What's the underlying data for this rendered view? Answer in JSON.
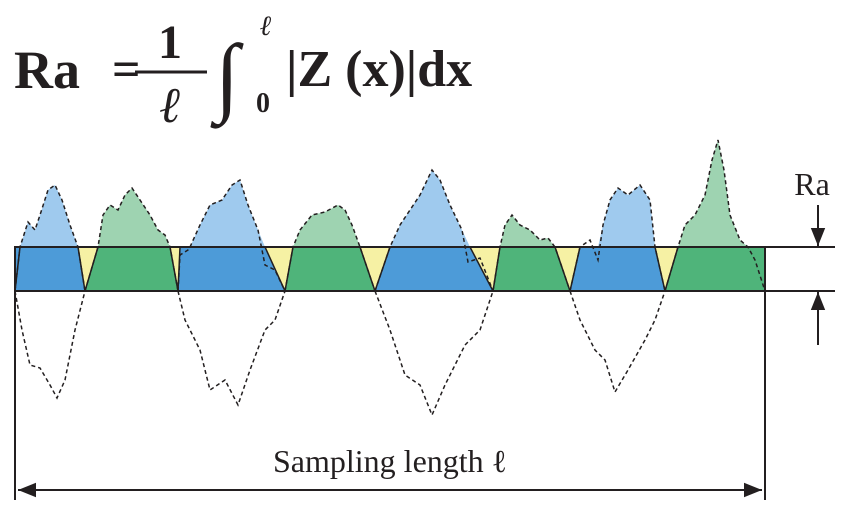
{
  "formula": {
    "lhs": "Ra",
    "equals": "=",
    "numerator": "1",
    "denominator": "ℓ",
    "integral": "∫",
    "upper": "ℓ",
    "lower": "0",
    "integrand": "|Z (x)|dx"
  },
  "labels": {
    "ra": "Ra",
    "sampling_length": "Sampling length ℓ"
  }
}
